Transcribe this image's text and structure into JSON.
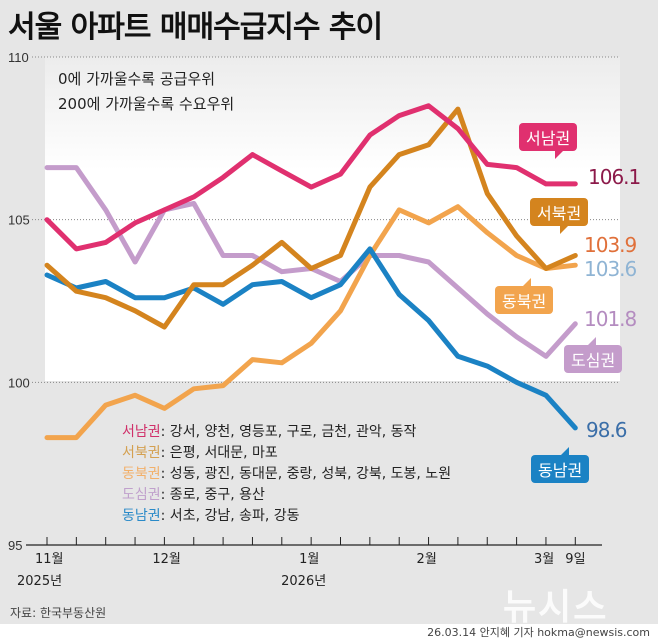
{
  "title": "서울 아파트 매매수급지수 추이",
  "notes": [
    "0에 가까울수록 공급우위",
    "200에 가까울수록 수요우위"
  ],
  "chart_data": {
    "type": "line",
    "title": "서울 아파트 매매수급지수 추이",
    "xlabel": "",
    "ylabel": "",
    "ylim": [
      95,
      110
    ],
    "yticks": [
      95,
      100,
      105,
      110
    ],
    "grid": true,
    "x_tick_count": 19,
    "x_labels": [
      {
        "index": 0,
        "label": "11월",
        "year": "2025년"
      },
      {
        "index": 4,
        "label": "12월",
        "year": ""
      },
      {
        "index": 9,
        "label": "1월",
        "year": "2026년"
      },
      {
        "index": 13,
        "label": "2월",
        "year": ""
      },
      {
        "index": 17,
        "label": "3월",
        "year": ""
      },
      {
        "index": 18,
        "label": "9일",
        "year": ""
      }
    ],
    "series": [
      {
        "name": "서남권",
        "color": "#e0306f",
        "label_color": "#8c1a4a",
        "end_label": "106.1",
        "values": [
          105.0,
          104.1,
          104.3,
          104.9,
          105.3,
          105.7,
          106.3,
          107.0,
          106.5,
          106.0,
          106.4,
          107.6,
          108.2,
          108.5,
          107.8,
          106.7,
          106.6,
          106.1,
          106.1
        ]
      },
      {
        "name": "서북권",
        "color": "#d4841e",
        "label_color": "#e0703a",
        "end_label": "103.9",
        "values": [
          103.6,
          102.8,
          102.6,
          102.2,
          101.7,
          103.0,
          103.0,
          103.6,
          104.3,
          103.5,
          103.9,
          106.0,
          107.0,
          107.3,
          108.4,
          105.8,
          104.5,
          103.5,
          103.9
        ]
      },
      {
        "name": "동북권",
        "color": "#f2a44d",
        "label_color": "#8fb4d4",
        "end_label": "103.6",
        "values": [
          98.3,
          98.3,
          99.3,
          99.6,
          99.2,
          99.8,
          99.9,
          100.7,
          100.6,
          101.2,
          102.2,
          103.9,
          105.3,
          104.9,
          105.4,
          104.6,
          103.9,
          103.5,
          103.6
        ]
      },
      {
        "name": "도심권",
        "color": "#c49ccb",
        "label_color": "#b48cc0",
        "end_label": "101.8",
        "values": [
          106.6,
          106.6,
          105.3,
          103.7,
          105.3,
          105.5,
          103.9,
          103.9,
          103.4,
          103.5,
          103.1,
          103.9,
          103.9,
          103.7,
          102.9,
          102.1,
          101.4,
          100.8,
          101.8
        ]
      },
      {
        "name": "동남권",
        "color": "#1b82c4",
        "label_color": "#3a6ea8",
        "end_label": "98.6",
        "values": [
          103.3,
          102.9,
          103.1,
          102.6,
          102.6,
          102.9,
          102.4,
          103.0,
          103.1,
          102.6,
          103.0,
          104.1,
          102.7,
          101.9,
          100.8,
          100.5,
          100.0,
          99.6,
          98.6
        ]
      }
    ]
  },
  "regions": [
    {
      "name": "서남권",
      "color": "#d0306a",
      "districts": ": 강서, 양천, 영등포, 구로, 금천, 관악, 동작"
    },
    {
      "name": "서북권",
      "color": "#d4a050",
      "districts": ": 은평, 서대문, 마포"
    },
    {
      "name": "동북권",
      "color": "#f2b06a",
      "districts": ": 성동, 광진, 동대문, 중랑, 성북, 강북, 도봉, 노원"
    },
    {
      "name": "도심권",
      "color": "#c0a0cc",
      "districts": ": 종로, 중구, 용산"
    },
    {
      "name": "동남권",
      "color": "#2a8ac8",
      "districts": ": 서초, 강남, 송파, 강동"
    }
  ],
  "source": "자료: 한국부동산원",
  "logo": "뉴시스",
  "credit": "26.03.14 안지혜 기자 hokma@newsis.com"
}
